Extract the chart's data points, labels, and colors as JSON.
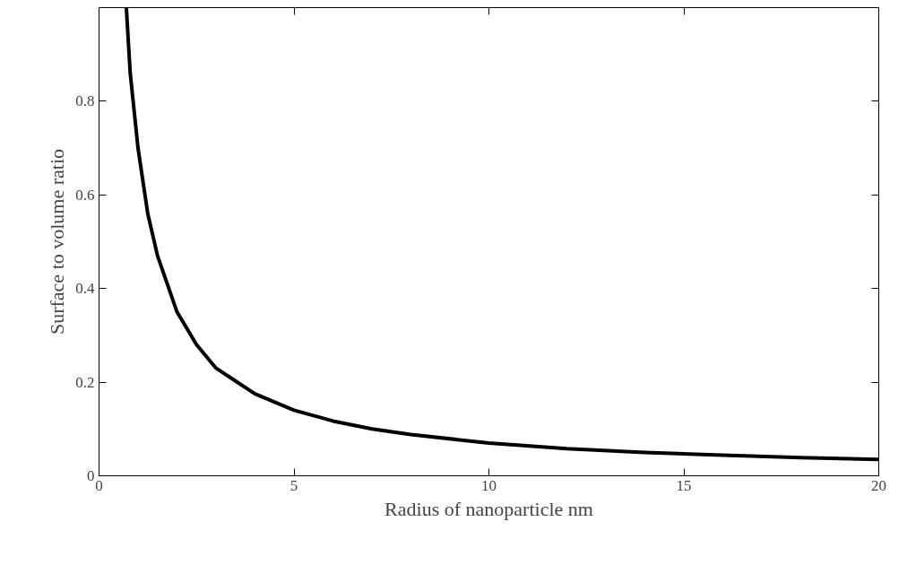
{
  "chart_data": {
    "type": "line",
    "xlabel": "Radius of nanoparticle nm",
    "ylabel": "Surface to volume ratio",
    "series": [
      {
        "color": "#000000",
        "x": [
          0.7,
          0.8,
          1,
          1.25,
          1.5,
          2,
          2.5,
          3,
          4,
          5,
          6,
          7,
          8,
          10,
          12,
          14,
          16,
          18,
          20
        ],
        "values": [
          1.0,
          0.86,
          0.7,
          0.56,
          0.47,
          0.35,
          0.28,
          0.23,
          0.175,
          0.14,
          0.117,
          0.1,
          0.088,
          0.07,
          0.058,
          0.05,
          0.044,
          0.039,
          0.035
        ]
      }
    ],
    "xlim": [
      0,
      20
    ],
    "ylim": [
      0,
      1
    ],
    "xticks": [
      0,
      5,
      10,
      15,
      20
    ],
    "yticks": [
      0,
      0.2,
      0.4,
      0.6,
      0.8
    ],
    "grid": false,
    "marker": "none",
    "line_style": "solid"
  }
}
